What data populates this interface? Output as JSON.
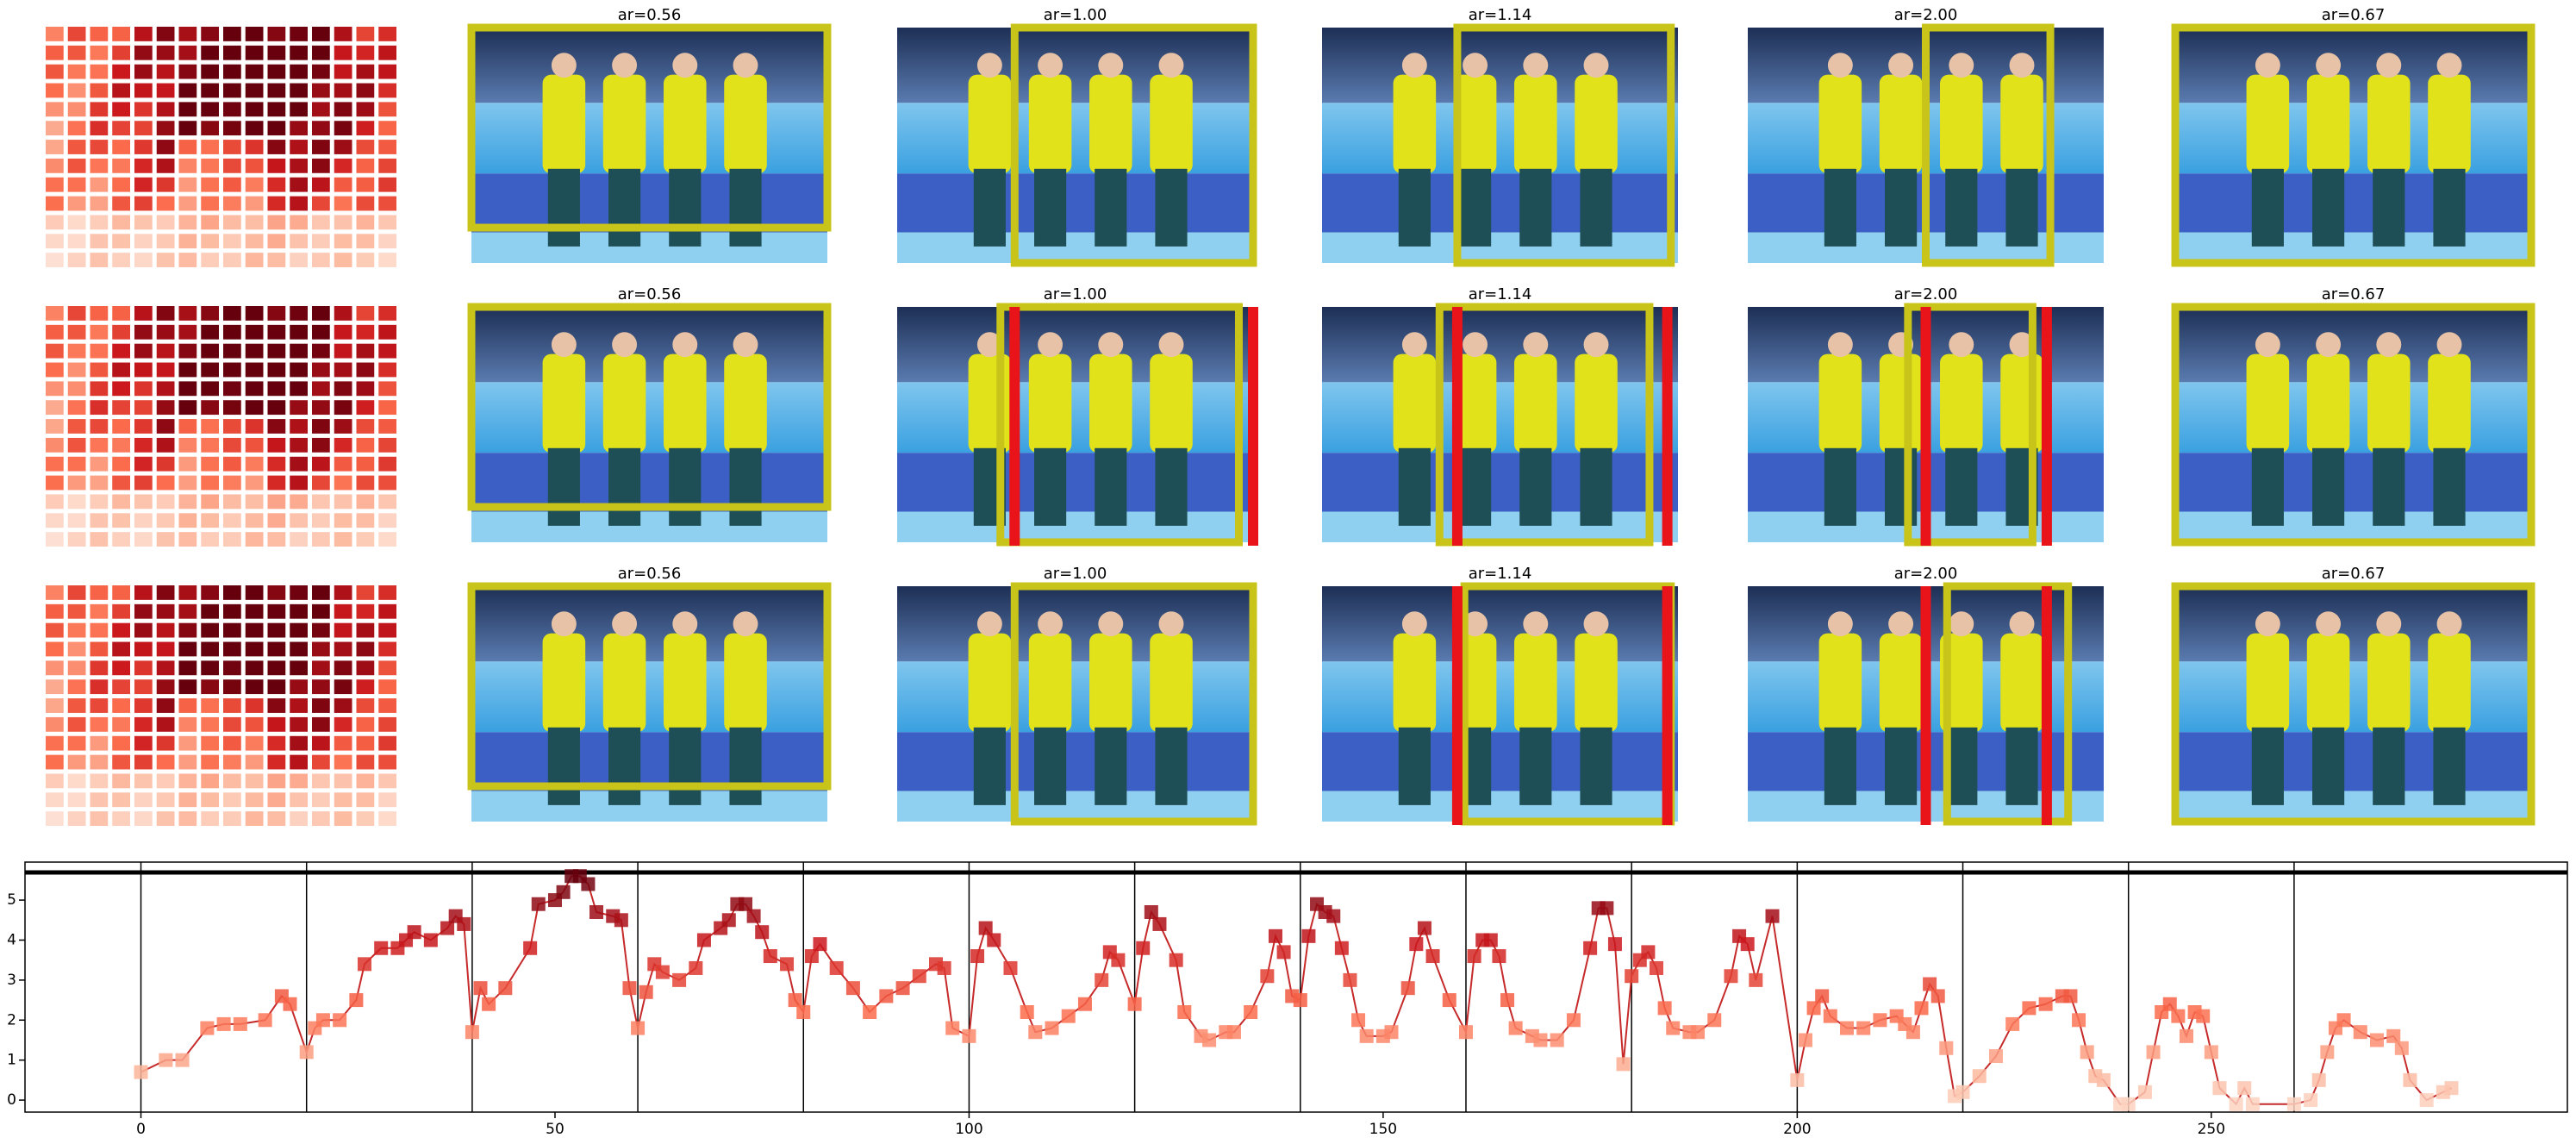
{
  "panels": [
    [
      "ar=0.56",
      "ar=1.00",
      "ar=1.14",
      "ar=2.00",
      "ar=0.67"
    ],
    [
      "ar=0.56",
      "ar=1.00",
      "ar=1.14",
      "ar=2.00",
      "ar=0.67"
    ],
    [
      "ar=0.56",
      "ar=1.00",
      "ar=1.14",
      "ar=2.00",
      "ar=0.67"
    ]
  ],
  "chart_data": {
    "type": "line",
    "color": "#c62a2a",
    "colormap": "Reds",
    "x": [
      0,
      3,
      5,
      8,
      10,
      12,
      15,
      17,
      18,
      20,
      21,
      22,
      24,
      26,
      27,
      29,
      31,
      32,
      33,
      35,
      37,
      38,
      39,
      40,
      41,
      42,
      44,
      47,
      48,
      50,
      51,
      52,
      53,
      54,
      55,
      57,
      58,
      59,
      60,
      61,
      62,
      63,
      65,
      67,
      68,
      70,
      71,
      72,
      73,
      74,
      75,
      76,
      78,
      79,
      80,
      81,
      82,
      84,
      86,
      88,
      90,
      92,
      94,
      96,
      97,
      98,
      100,
      101,
      102,
      103,
      105,
      107,
      108,
      110,
      112,
      114,
      116,
      117,
      118,
      120,
      121,
      122,
      123,
      125,
      126,
      128,
      129,
      131,
      132,
      134,
      136,
      137,
      138,
      139,
      140,
      141,
      142,
      143,
      144,
      145,
      146,
      147,
      148,
      150,
      151,
      153,
      154,
      155,
      156,
      158,
      160,
      161,
      162,
      163,
      164,
      165,
      166,
      168,
      169,
      171,
      173,
      175,
      176,
      177,
      178,
      179,
      180,
      181,
      182,
      183,
      184,
      185,
      187,
      188,
      190,
      192,
      193,
      194,
      195,
      197,
      200,
      201,
      202,
      203,
      204,
      206,
      208,
      210,
      212,
      213,
      214,
      215,
      216,
      217,
      218,
      219,
      220,
      222,
      224,
      226,
      228,
      230,
      232,
      233,
      234,
      235,
      236,
      237,
      239,
      240,
      242,
      243,
      244,
      245,
      246,
      247,
      248,
      249,
      250,
      251,
      253,
      254,
      255,
      260,
      262,
      263,
      264,
      265,
      266,
      268,
      270,
      272,
      273,
      274,
      276,
      278,
      279
    ],
    "values": [
      0.7,
      1.0,
      1.0,
      1.8,
      1.9,
      1.9,
      2.0,
      2.6,
      2.4,
      1.2,
      1.8,
      2.0,
      2.0,
      2.5,
      3.4,
      3.8,
      3.8,
      4.0,
      4.2,
      4.0,
      4.3,
      4.6,
      4.4,
      1.7,
      2.8,
      2.4,
      2.8,
      3.8,
      4.9,
      5.0,
      5.2,
      5.6,
      5.6,
      5.4,
      4.7,
      4.6,
      4.5,
      2.8,
      1.8,
      2.7,
      3.4,
      3.2,
      3.0,
      3.3,
      4.0,
      4.3,
      4.5,
      4.9,
      4.9,
      4.6,
      4.2,
      3.6,
      3.4,
      2.5,
      2.2,
      3.6,
      3.9,
      3.3,
      2.8,
      2.2,
      2.6,
      2.8,
      3.1,
      3.4,
      3.3,
      1.8,
      1.6,
      3.6,
      4.3,
      4.0,
      3.3,
      2.2,
      1.7,
      1.8,
      2.1,
      2.4,
      3.0,
      3.7,
      3.5,
      2.4,
      3.8,
      4.7,
      4.4,
      3.5,
      2.2,
      1.6,
      1.5,
      1.7,
      1.7,
      2.2,
      3.1,
      4.1,
      3.7,
      2.6,
      2.5,
      4.1,
      4.9,
      4.7,
      4.6,
      3.8,
      3.0,
      2.0,
      1.6,
      1.6,
      1.7,
      2.8,
      3.9,
      4.3,
      3.6,
      2.5,
      1.7,
      3.6,
      4.0,
      4.0,
      3.6,
      2.5,
      1.8,
      1.6,
      1.5,
      1.5,
      2.0,
      3.8,
      4.8,
      4.8,
      3.9,
      0.9,
      3.1,
      3.5,
      3.7,
      3.3,
      2.3,
      1.8,
      1.7,
      1.7,
      2.0,
      3.1,
      4.1,
      3.9,
      3.0,
      4.6,
      0.5,
      1.5,
      2.3,
      2.6,
      2.1,
      1.8,
      1.8,
      2.0,
      2.1,
      1.9,
      1.7,
      2.3,
      2.9,
      2.6,
      1.3,
      0.1,
      0.2,
      0.6,
      1.1,
      1.9,
      2.3,
      2.4,
      2.6,
      2.6,
      2.0,
      1.2,
      0.6,
      0.5,
      -0.1,
      -0.1,
      0.2,
      1.2,
      2.2,
      2.4,
      2.1,
      1.6,
      2.2,
      2.1,
      1.2,
      0.3,
      -0.1,
      0.3,
      -0.1,
      -0.1,
      0.0,
      0.5,
      1.2,
      1.8,
      2.0,
      1.7,
      1.5,
      1.6,
      1.3,
      0.5,
      0.0,
      0.2,
      0.3
    ],
    "xlim": [
      -14,
      293
    ],
    "ylim": [
      -0.3,
      5.95
    ],
    "xticks": [
      0,
      50,
      100,
      150,
      200,
      250
    ],
    "yticks": [
      0,
      1,
      2,
      3,
      4,
      5
    ],
    "vlines": [
      0,
      20,
      40,
      60,
      80,
      100,
      120,
      140,
      160,
      180,
      200,
      220,
      240,
      260
    ]
  }
}
